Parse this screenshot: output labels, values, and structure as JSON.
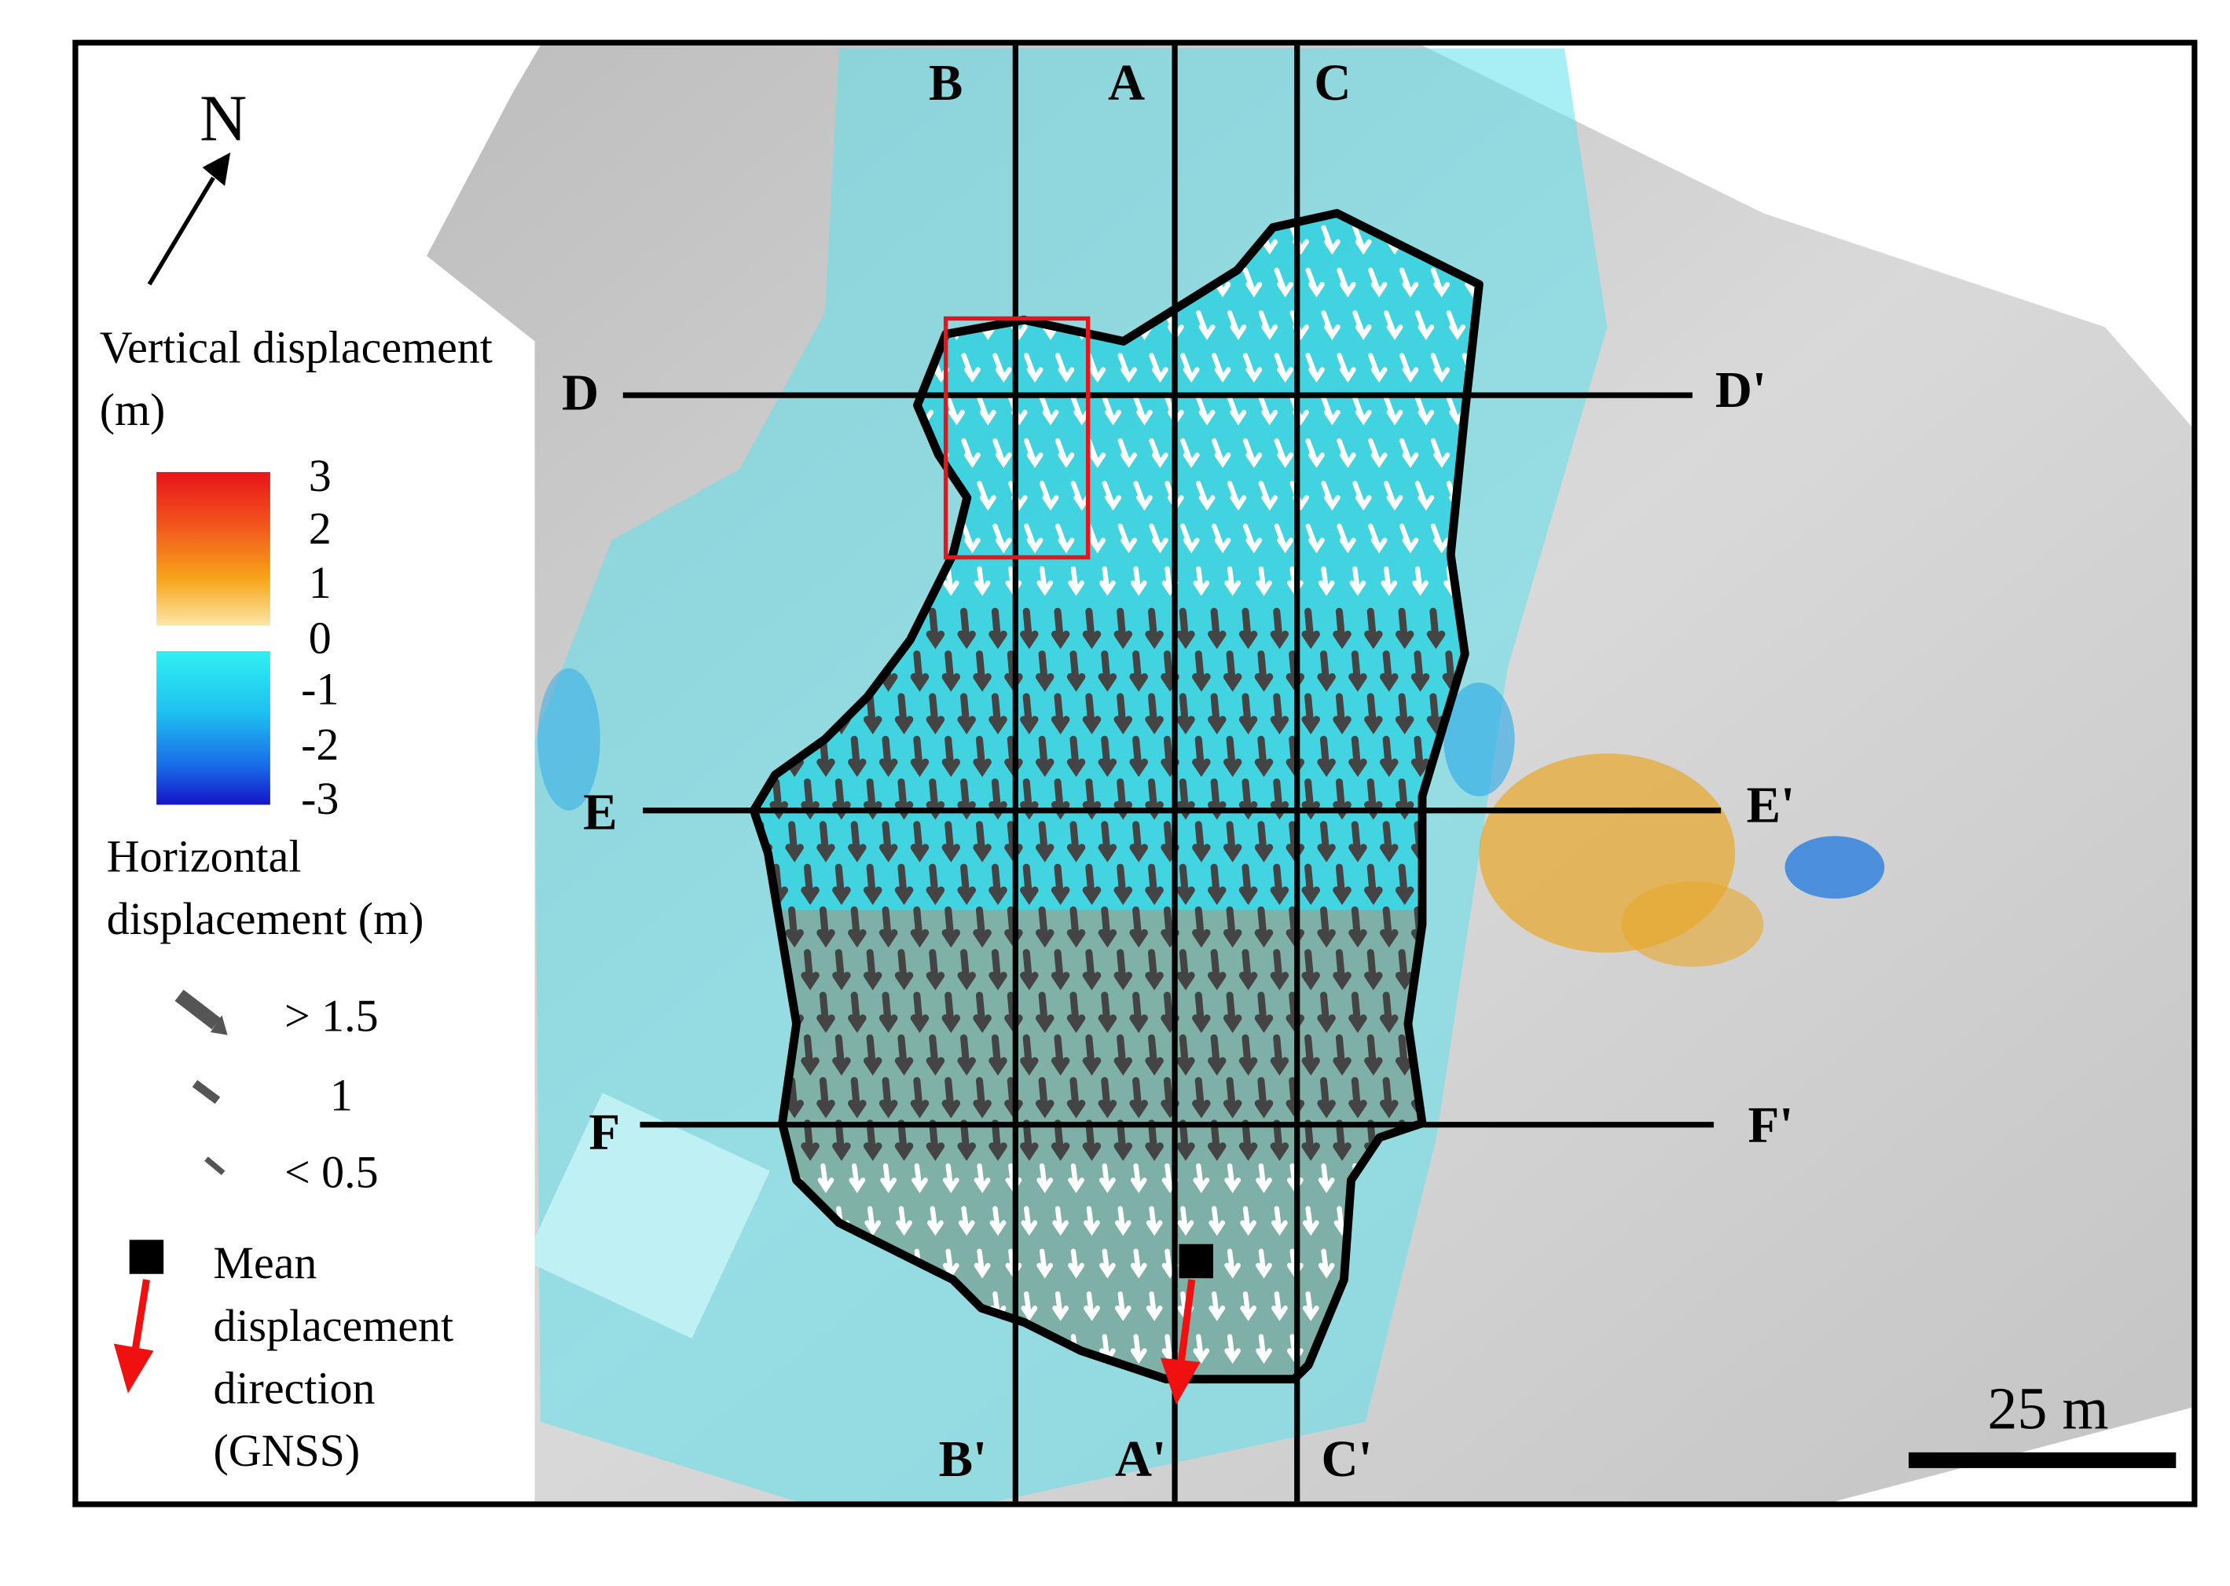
{
  "north_label": "N",
  "legend": {
    "vertical_title": "Vertical displacement (m)",
    "vertical_ticks": [
      3,
      2,
      1,
      0,
      -1,
      -2,
      -3
    ],
    "horizontal_title": "Horizontal displacement (m)",
    "horizontal_classes": [
      "> 1.5",
      "1",
      "< 0.5"
    ],
    "gnss_label": "Mean displacement direction (GNSS)"
  },
  "profiles": [
    {
      "start": "A",
      "end": "A'"
    },
    {
      "start": "B",
      "end": "B'"
    },
    {
      "start": "C",
      "end": "C'"
    },
    {
      "start": "D",
      "end": "D'"
    },
    {
      "start": "E",
      "end": "E'"
    },
    {
      "start": "F",
      "end": "F'"
    }
  ],
  "scale_bar": "25 m"
}
